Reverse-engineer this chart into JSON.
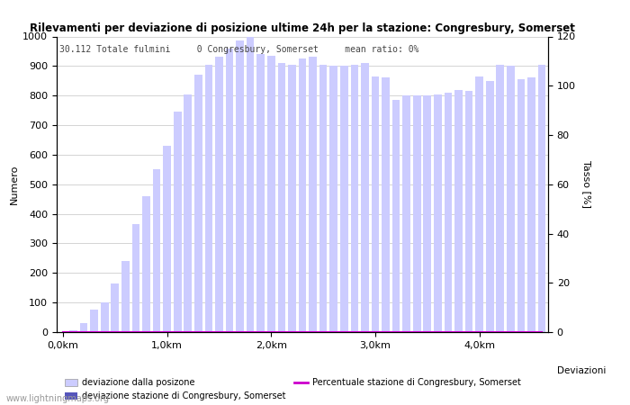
{
  "title": "Rilevamenti per deviazione di posizione ultime 24h per la stazione: Congresbury, Somerset",
  "subtitle": "30.112 Totale fulmini     0 Congresbury, Somerset     mean ratio: 0%",
  "ylabel_left": "Numero",
  "ylabel_right": "Tasso [%]",
  "xlabel_deviazioni": "Deviazioni",
  "ylim_left": [
    0,
    1000
  ],
  "ylim_right": [
    0,
    120
  ],
  "yticks_left": [
    0,
    100,
    200,
    300,
    400,
    500,
    600,
    700,
    800,
    900,
    1000
  ],
  "yticks_right": [
    0,
    20,
    40,
    60,
    80,
    100,
    120
  ],
  "bar_color_light": "#ccccff",
  "bar_color_dark": "#5555bb",
  "line_color": "#cc00cc",
  "watermark": "www.lightningmaps.org",
  "legend_label_light": "deviazione dalla posizone",
  "legend_label_dark": "deviazione stazione di Congresbury, Somerset",
  "legend_label_line": "Percentuale stazione di Congresbury, Somerset",
  "n_total_bars": 47,
  "heights": [
    0,
    5,
    30,
    75,
    100,
    165,
    240,
    365,
    460,
    550,
    630,
    745,
    805,
    870,
    905,
    930,
    960,
    985,
    1000,
    940,
    935,
    910,
    905,
    925,
    930,
    905,
    900,
    900,
    905,
    910,
    865,
    860,
    785,
    800,
    800,
    800,
    805,
    810,
    820,
    815,
    865,
    850,
    905,
    900,
    855,
    860,
    905
  ],
  "dark_heights": [
    0,
    0,
    0,
    0,
    0,
    0,
    0,
    0,
    0,
    0,
    0,
    0,
    0,
    0,
    0,
    0,
    0,
    0,
    0,
    0,
    0,
    0,
    0,
    0,
    0,
    0,
    0,
    0,
    0,
    0,
    0,
    0,
    0,
    0,
    0,
    0,
    0,
    0,
    0,
    0,
    0,
    0,
    0,
    0,
    0,
    0,
    0
  ],
  "xtick_positions_km": [
    0,
    10,
    20,
    30,
    40
  ],
  "xtick_labels": [
    "0,0km",
    "1,0km",
    "2,0km",
    "3,0km",
    "4,0km"
  ]
}
